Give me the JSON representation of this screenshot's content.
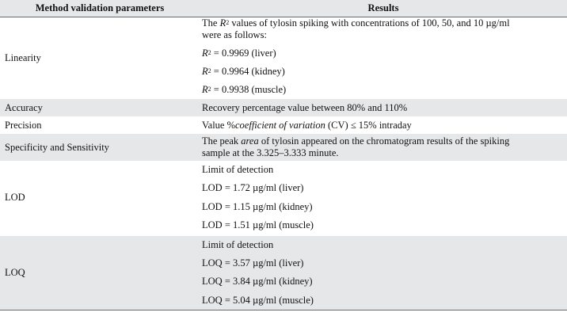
{
  "header": {
    "col1": "Method validation parameters",
    "col2": "Results"
  },
  "linearity": {
    "param": "Linearity",
    "intro_a": "The ",
    "intro_r": "R",
    "intro_sup": "2",
    "intro_b": " values of tylosin spiking with concentrations of 100, 50, and 10 µg/ml",
    "intro_c": "were as follows:",
    "r_symbol": "R",
    "r_sup": "2",
    "values": [
      " = 0.9969 (liver)",
      " = 0.9964 (kidney)",
      " = 0.9938 (muscle)"
    ]
  },
  "accuracy": {
    "param": "Accuracy",
    "result": "Recovery percentage value between 80% and 110%"
  },
  "precision": {
    "param": "Precision",
    "result_a": "Value %",
    "result_italic": "coefficient of variation",
    "result_b": " (CV) ≤ 15% intraday"
  },
  "specificity": {
    "param": "Specificity and Sensitivity",
    "result_a": "The peak ",
    "result_italic": "area",
    "result_b": " of tylosin appeared on the chromatogram results of the spiking",
    "result_c": "sample at the 3.325–3.333 minute."
  },
  "lod": {
    "param": "LOD",
    "lines": [
      "Limit of detection",
      "LOD = 1.72 µg/ml (liver)",
      "LOD = 1.15 µg/ml (kidney)",
      "LOD = 1.51 µg/ml (muscle)"
    ]
  },
  "loq": {
    "param": "LOQ",
    "lines": [
      "Limit of detection",
      "LOQ = 3.57 µg/ml (liver)",
      "LOQ = 3.84 µg/ml (kidney)",
      "LOQ = 5.04 µg/ml (muscle)"
    ]
  }
}
